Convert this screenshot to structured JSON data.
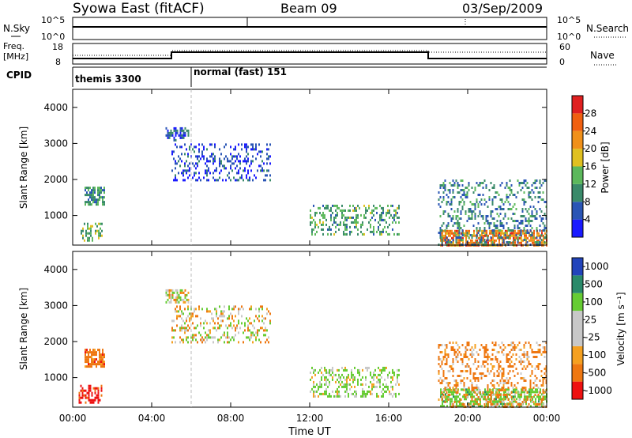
{
  "header": {
    "station": "Syowa East (fitACF)",
    "beam": "Beam 09",
    "date": "03/Sep/2009"
  },
  "top_panels": {
    "nsky_label": "N.Sky",
    "nsky_ticks": [
      "10^5",
      "10^0"
    ],
    "nsearch_label": "N.Search",
    "freq_label_1": "Freq.",
    "freq_label_2": "[MHz]",
    "freq_ticks": [
      "18",
      "8"
    ],
    "nave_label": "Nave",
    "nave_ticks": [
      "60",
      "0"
    ],
    "cpid_label": "CPID",
    "cpid_segments": [
      {
        "label": "themis 3300",
        "start_hour": 0
      },
      {
        "label": "normal (fast) 151",
        "start_hour": 6
      }
    ]
  },
  "colors": {
    "power_scale": [
      "#1a1aff",
      "#2a55b5",
      "#3a8a6a",
      "#5cb85c",
      "#e0c020",
      "#f0901a",
      "#f06010",
      "#e02020"
    ],
    "velocity_scale": [
      "#ee1111",
      "#ee7711",
      "#f5a020",
      "#c8c8c8",
      "#c8c8c8",
      "#66cc33",
      "#2a8a6a",
      "#2244bb"
    ]
  },
  "chart_data": [
    {
      "type": "heatmap",
      "name": "power",
      "ylabel": "Slant Range [km]",
      "xlabel": "Time UT",
      "x_ticks": [
        "00:00",
        "04:00",
        "08:00",
        "12:00",
        "16:00",
        "20:00",
        "00:00"
      ],
      "x_range_hours": [
        0,
        24
      ],
      "y_ticks": [
        "1000",
        "2000",
        "3000",
        "4000"
      ],
      "y_range": [
        180,
        4500
      ],
      "colorbar_label": "Power [dB]",
      "colorbar_ticks": [
        "4",
        "8",
        "12",
        "16",
        "20",
        "24",
        "28"
      ],
      "colorbar_range": [
        0,
        32
      ],
      "regions": [
        {
          "t0": 0.6,
          "t1": 1.6,
          "r0": 1300,
          "r1": 1800,
          "p": 10,
          "density": 0.7
        },
        {
          "t0": 0.4,
          "t1": 1.5,
          "r0": 300,
          "r1": 800,
          "p": 14,
          "density": 0.5
        },
        {
          "t0": 4.7,
          "t1": 5.9,
          "r0": 3100,
          "r1": 3450,
          "p": 6,
          "density": 0.6
        },
        {
          "t0": 5.0,
          "t1": 10.0,
          "r0": 2000,
          "r1": 3000,
          "p": 5,
          "density": 0.28
        },
        {
          "t0": 12.0,
          "t1": 16.5,
          "r0": 500,
          "r1": 1300,
          "p": 12,
          "density": 0.35
        },
        {
          "t0": 18.6,
          "t1": 24.0,
          "r0": 200,
          "r1": 600,
          "p": 24,
          "density": 0.7
        },
        {
          "t0": 18.5,
          "t1": 24.0,
          "r0": 200,
          "r1": 2000,
          "p": 9,
          "density": 0.3
        }
      ]
    },
    {
      "type": "heatmap",
      "name": "velocity",
      "ylabel": "Slant Range [km]",
      "xlabel": "Time UT",
      "x_ticks": [
        "00:00",
        "04:00",
        "08:00",
        "12:00",
        "16:00",
        "20:00",
        "00:00"
      ],
      "x_range_hours": [
        0,
        24
      ],
      "y_ticks": [
        "1000",
        "2000",
        "3000",
        "4000"
      ],
      "y_range": [
        180,
        4500
      ],
      "colorbar_label": "Velocity [m s⁻¹]",
      "colorbar_ticks": [
        "-1000",
        "-500",
        "-100",
        "-25",
        "25",
        "100",
        "500",
        "1000"
      ],
      "regions": [
        {
          "t0": 0.6,
          "t1": 1.6,
          "r0": 1300,
          "r1": 1800,
          "v": -300,
          "density": 0.7
        },
        {
          "t0": 0.3,
          "t1": 1.5,
          "r0": 300,
          "r1": 800,
          "v": -600,
          "density": 0.5
        },
        {
          "t0": 4.7,
          "t1": 5.9,
          "r0": 3100,
          "r1": 3450,
          "v": 10,
          "density": 0.6
        },
        {
          "t0": 5.0,
          "t1": 10.0,
          "r0": 2000,
          "r1": 3000,
          "v": 0,
          "density": 0.28
        },
        {
          "t0": 12.0,
          "t1": 16.5,
          "r0": 500,
          "r1": 1300,
          "v": 150,
          "density": 0.35
        },
        {
          "t0": 18.6,
          "t1": 24.0,
          "r0": 200,
          "r1": 700,
          "v": 300,
          "density": 0.6
        },
        {
          "t0": 18.5,
          "t1": 24.0,
          "r0": 200,
          "r1": 2000,
          "v": -200,
          "density": 0.3
        }
      ]
    }
  ]
}
